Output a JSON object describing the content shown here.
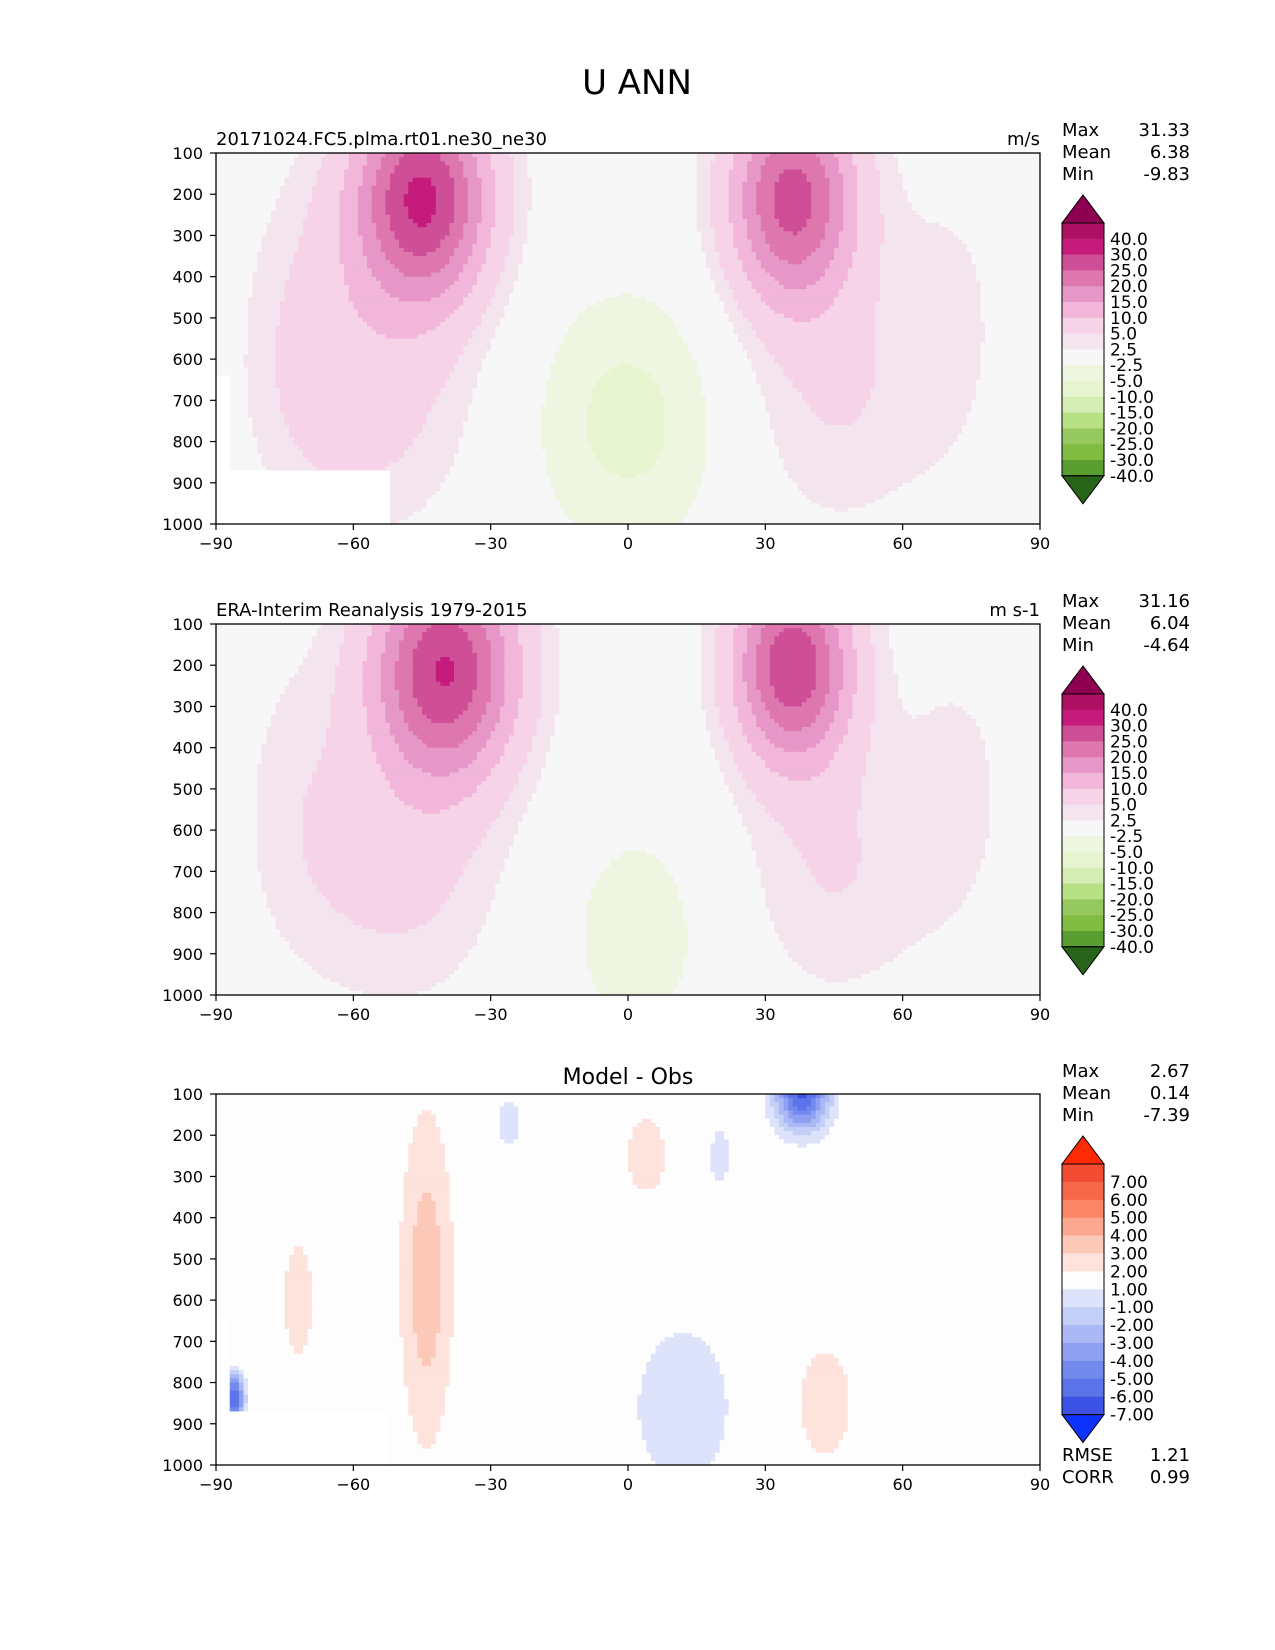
{
  "figure_title": "U ANN",
  "colors": {
    "pink": [
      "#f7f7f7",
      "#f4e4ee",
      "#f7d3e8",
      "#f1b6da",
      "#e697c7",
      "#de77ae",
      "#cf4f96",
      "#c51b7d",
      "#ad1063",
      "#8e0152"
    ],
    "green": [
      "#f7f7f7",
      "#eef6e2",
      "#e6f5d0",
      "#d3edb4",
      "#b8e186",
      "#95c960",
      "#7fbc41",
      "#5a9d30",
      "#3d8726",
      "#276419"
    ],
    "diff_pos": [
      "#fdfdfd",
      "#fde3dc",
      "#fcc8b8",
      "#fca791",
      "#fb8567",
      "#f66848",
      "#f24c32",
      "#fe2a05"
    ],
    "diff_neg": [
      "#fdfdfd",
      "#dce3fb",
      "#c4cff8",
      "#aab8f5",
      "#8f9ff1",
      "#7289ee",
      "#5b74ea",
      "#3c53e6",
      "#0f33ff"
    ],
    "missing": "#ffffff"
  },
  "chart_data": [
    {
      "type": "heatmap",
      "title": "20171024.FC5.plma.rt01.ne30_ne30",
      "units": "m/s",
      "stats": [
        {
          "label": "Max",
          "value": "31.33"
        },
        {
          "label": "Mean",
          "value": "6.38"
        },
        {
          "label": "Min",
          "value": "-9.83"
        }
      ],
      "x_ticks": [
        "−90",
        "−60",
        "−30",
        "0",
        "30",
        "60",
        "90"
      ],
      "xlim": [
        -90,
        90
      ],
      "y_ticks": [
        "100",
        "200",
        "300",
        "400",
        "500",
        "600",
        "700",
        "800",
        "900",
        "1000"
      ],
      "ylim": [
        1000,
        100
      ],
      "colorbar_levels": [
        "40.0",
        "30.0",
        "25.0",
        "20.0",
        "15.0",
        "10.0",
        "5.0",
        "2.5",
        "-2.5",
        "-5.0",
        "-10.0",
        "-15.0",
        "-20.0",
        "-25.0",
        "-30.0",
        "-40.0"
      ],
      "field": {
        "nh_jet": {
          "lat": 36,
          "plev": 220,
          "peak": 31.33
        },
        "sh_jet": {
          "lat": -45,
          "plev": 200,
          "peak": 31
        },
        "tropical_easterlies_min": -9.83
      }
    },
    {
      "type": "heatmap",
      "title": "ERA-Interim Reanalysis 1979-2015",
      "units": "m s-1",
      "stats": [
        {
          "label": "Max",
          "value": "31.16"
        },
        {
          "label": "Mean",
          "value": "6.04"
        },
        {
          "label": "Min",
          "value": "-4.64"
        }
      ],
      "x_ticks": [
        "−90",
        "−60",
        "−30",
        "0",
        "30",
        "60",
        "90"
      ],
      "xlim": [
        -90,
        90
      ],
      "y_ticks": [
        "100",
        "200",
        "300",
        "400",
        "500",
        "600",
        "700",
        "800",
        "900",
        "1000"
      ],
      "ylim": [
        1000,
        100
      ],
      "colorbar_levels": [
        "40.0",
        "30.0",
        "25.0",
        "20.0",
        "15.0",
        "10.0",
        "5.0",
        "2.5",
        "-2.5",
        "-5.0",
        "-10.0",
        "-15.0",
        "-20.0",
        "-25.0",
        "-30.0",
        "-40.0"
      ],
      "field": {
        "nh_jet": {
          "lat": 36,
          "plev": 200,
          "peak": 31.16
        },
        "sh_jet": {
          "lat": -38,
          "plev": 200,
          "peak": 30
        },
        "tropical_easterlies_min": -4.64
      }
    },
    {
      "type": "heatmap",
      "title": "Model - Obs",
      "units": "",
      "stats": [
        {
          "label": "Max",
          "value": "2.67"
        },
        {
          "label": "Mean",
          "value": "0.14"
        },
        {
          "label": "Min",
          "value": "-7.39"
        }
      ],
      "extra_stats": [
        {
          "label": "RMSE",
          "value": "1.21"
        },
        {
          "label": "CORR",
          "value": "0.99"
        }
      ],
      "x_ticks": [
        "−90",
        "−60",
        "−30",
        "0",
        "30",
        "60",
        "90"
      ],
      "xlim": [
        -90,
        90
      ],
      "y_ticks": [
        "100",
        "200",
        "300",
        "400",
        "500",
        "600",
        "700",
        "800",
        "900",
        "1000"
      ],
      "ylim": [
        1000,
        100
      ],
      "colorbar_levels": [
        "7.00",
        "6.00",
        "5.00",
        "4.00",
        "3.00",
        "2.00",
        "1.00",
        "-1.00",
        "-2.00",
        "-3.00",
        "-4.00",
        "-5.00",
        "-6.00",
        "-7.00"
      ],
      "field": {
        "max": 2.67,
        "min": -7.39,
        "min_location": {
          "lat": -86,
          "plev": 850
        }
      }
    }
  ]
}
